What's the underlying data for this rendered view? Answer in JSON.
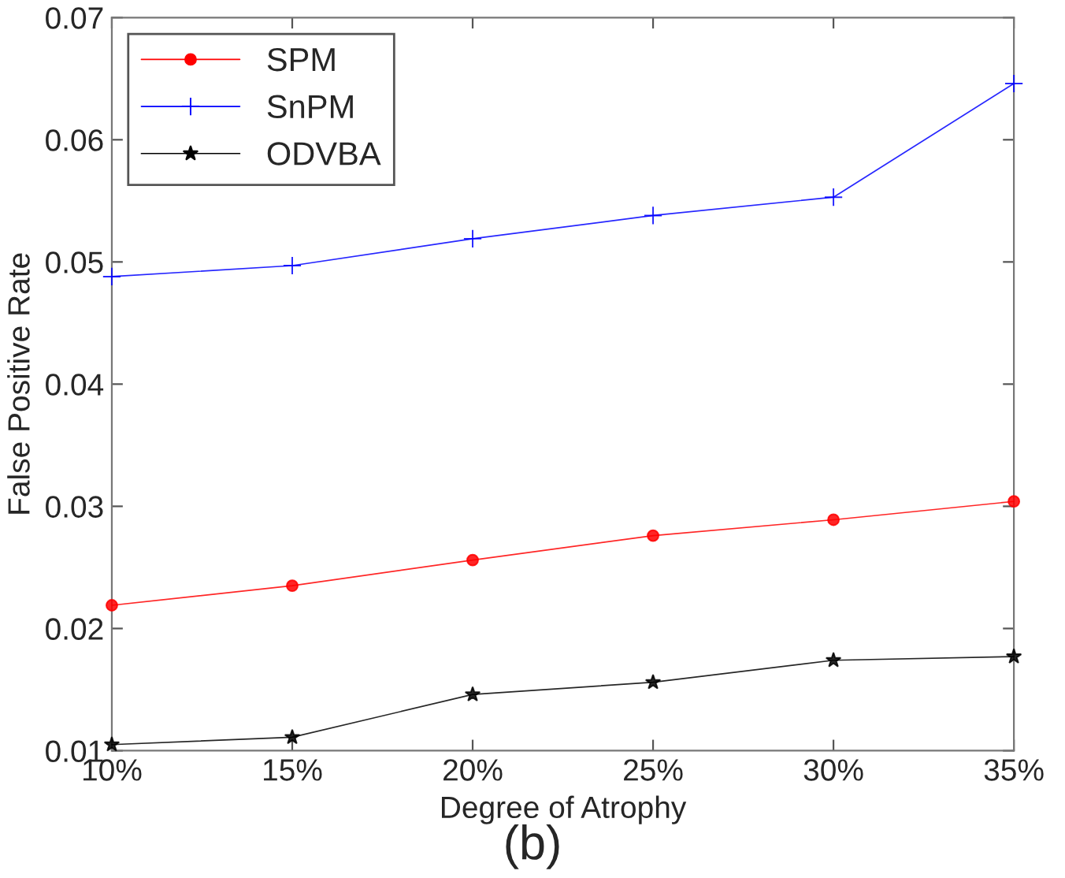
{
  "chart_data": {
    "type": "line",
    "xlabel": "Degree of Atrophy",
    "ylabel": "False Positive Rate",
    "x": [
      10,
      15,
      20,
      25,
      30,
      35
    ],
    "xlim": [
      10,
      35
    ],
    "xticks": [
      {
        "value": 10,
        "label": "10%"
      },
      {
        "value": 15,
        "label": "15%"
      },
      {
        "value": 20,
        "label": "20%"
      },
      {
        "value": 25,
        "label": "25%"
      },
      {
        "value": 30,
        "label": "30%"
      },
      {
        "value": 35,
        "label": "35%"
      }
    ],
    "ylim": [
      0.01,
      0.07
    ],
    "yticks": [
      0.01,
      0.02,
      0.03,
      0.04,
      0.05,
      0.06,
      0.07
    ],
    "grid": false,
    "legend": "top left",
    "line_style": "solid",
    "series": [
      {
        "name": "SPM",
        "color": "#ff0000",
        "marker": "circle",
        "values": [
          0.0219,
          0.0235,
          0.0256,
          0.0276,
          0.0289,
          0.0304
        ]
      },
      {
        "name": "SnPM",
        "color": "#0000ff",
        "marker": "cross",
        "values": [
          0.0488,
          0.0497,
          0.0519,
          0.0538,
          0.0553,
          0.0646
        ]
      },
      {
        "name": "ODVBA",
        "color": "#000000",
        "marker": "star",
        "values": [
          0.0105,
          0.0111,
          0.0146,
          0.0156,
          0.0174,
          0.0177
        ]
      }
    ],
    "annotations": [
      "(b)"
    ]
  }
}
